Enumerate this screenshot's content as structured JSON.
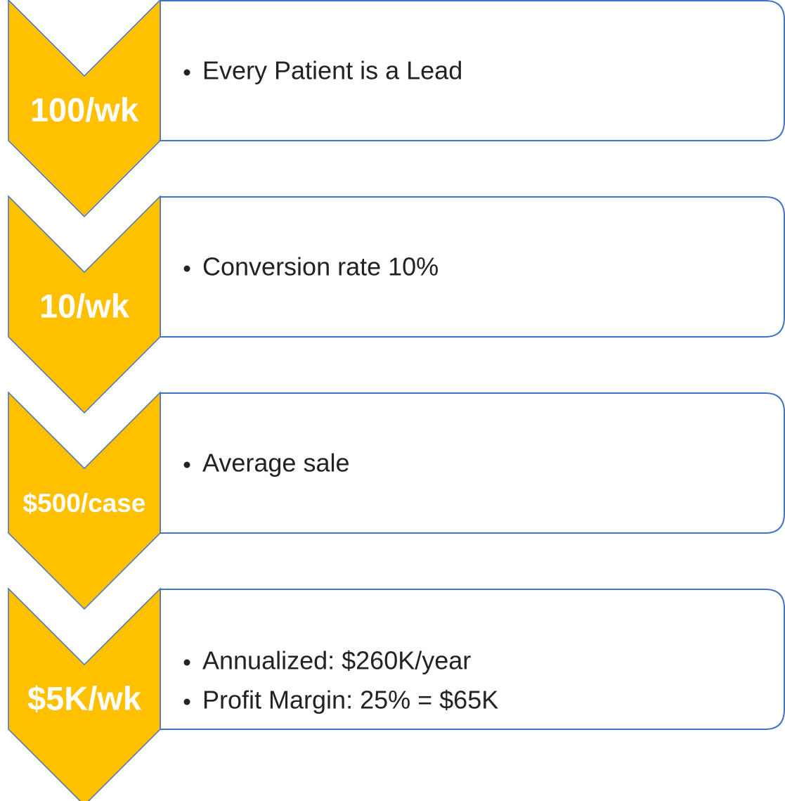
{
  "items": [
    {
      "label": "100/wk",
      "bullets": [
        "Every Patient is a Lead"
      ]
    },
    {
      "label": "10/wk",
      "bullets": [
        "Conversion rate 10%"
      ]
    },
    {
      "label": "$500/case",
      "bullets": [
        "Average sale"
      ]
    },
    {
      "label": "$5K/wk",
      "bullets": [
        "Annualized: $260K/year",
        "Profit Margin: 25% = $65K"
      ]
    }
  ]
}
